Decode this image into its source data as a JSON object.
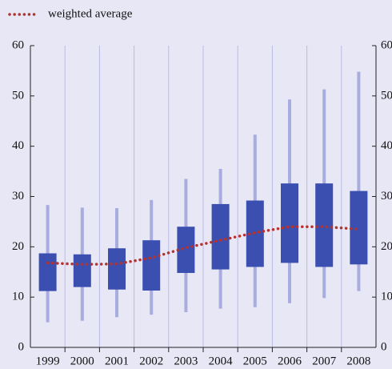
{
  "chart_data": {
    "type": "box",
    "categories": [
      "1999",
      "2000",
      "2001",
      "2002",
      "2003",
      "2004",
      "2005",
      "2006",
      "2007",
      "2008"
    ],
    "boxes": {
      "color": "#3a4fb0",
      "whisker_color": "#a9acdf",
      "low": [
        5,
        5.3,
        6,
        6.5,
        7,
        7.7,
        8,
        8.8,
        9.8,
        11.2
      ],
      "q1": [
        11.2,
        12,
        11.5,
        11.3,
        14.8,
        15.5,
        16,
        16.8,
        16,
        16.5
      ],
      "q3": [
        18.7,
        18.5,
        19.7,
        21.3,
        24,
        28.5,
        29.2,
        32.6,
        32.6,
        31.1
      ],
      "high": [
        28.3,
        27.8,
        27.7,
        29.3,
        33.5,
        35.5,
        42.3,
        49.3,
        51.3,
        54.8
      ]
    },
    "series": [
      {
        "name": "weighted average",
        "color": "#b5332e",
        "values": [
          16.8,
          16.5,
          16.6,
          17.8,
          19.8,
          21.3,
          22.8,
          24,
          24,
          23.5
        ]
      }
    ],
    "ylim": [
      0,
      60
    ],
    "yticks": [
      0,
      10,
      20,
      30,
      40,
      50,
      60
    ],
    "y2lim": [
      0,
      60
    ],
    "y2ticks": [
      0,
      10,
      20,
      30,
      40,
      50,
      60
    ],
    "grid": true
  }
}
